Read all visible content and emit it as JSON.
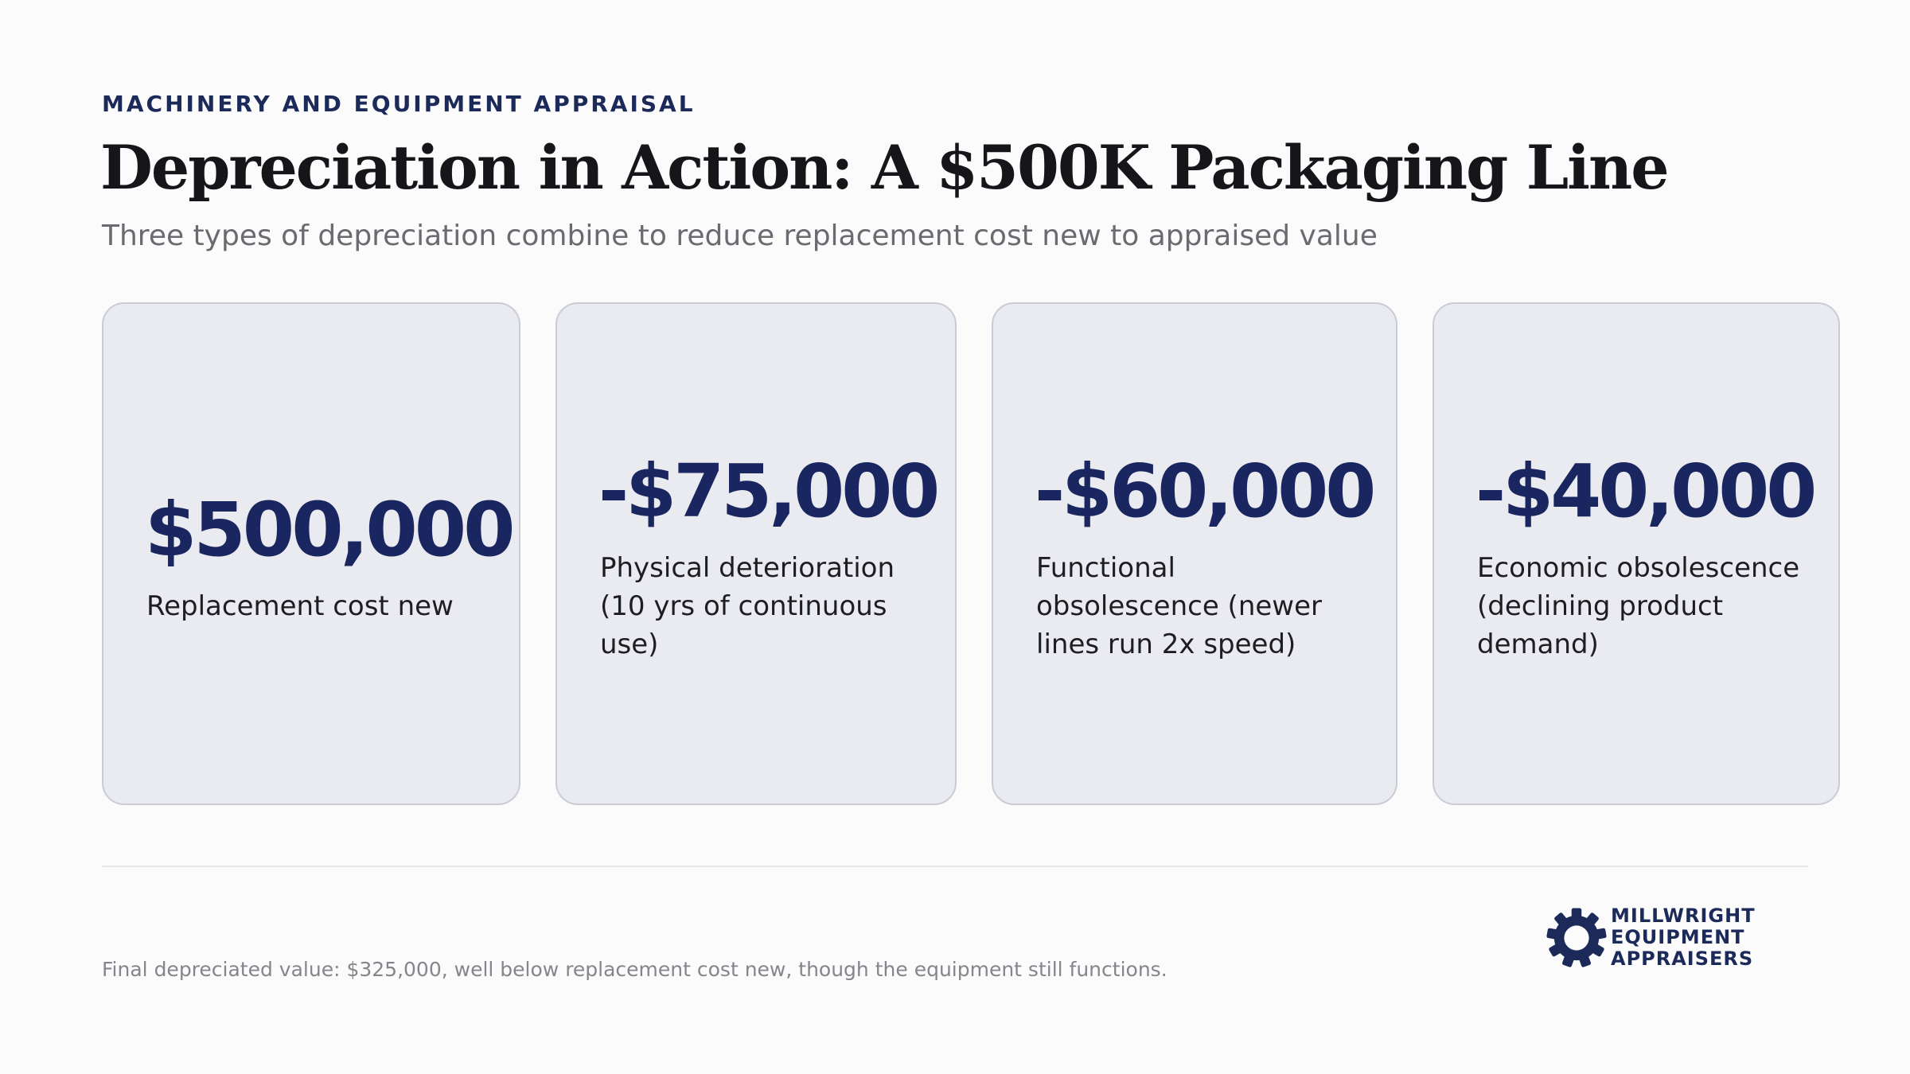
{
  "header": {
    "eyebrow": "MACHINERY AND EQUIPMENT APPRAISAL",
    "title": "Depreciation in Action: A $500K Packaging Line",
    "subtitle": "Three types of depreciation combine to reduce replacement cost new to appraised value"
  },
  "cards": [
    {
      "value": "$500,000",
      "label": "Replacement cost new"
    },
    {
      "value": "-$75,000",
      "label": "Physical deterioration (10 yrs of continuous use)"
    },
    {
      "value": "-$60,000",
      "label": "Functional obsolescence (newer lines run 2x speed)"
    },
    {
      "value": "-$40,000",
      "label": "Economic obsolescence (declining product demand)"
    }
  ],
  "footer": {
    "note": "Final depreciated value: $325,000, well below replacement cost new, though the equipment still functions.",
    "logo_line1": "MILLWRIGHT",
    "logo_line2": "EQUIPMENT",
    "logo_line3": "APPRAISERS"
  },
  "colors": {
    "accent": "#1a2660",
    "card_background": "#eaebf0",
    "card_border": "#c9cbd6"
  },
  "icons": {
    "logo_mark": "gear-icon"
  }
}
